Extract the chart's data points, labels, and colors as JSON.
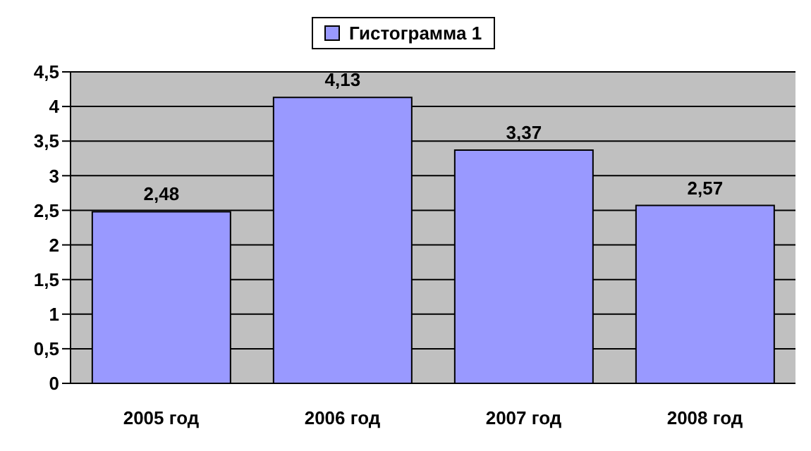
{
  "chart_data": {
    "type": "bar",
    "categories": [
      "2005 год",
      "2006 год",
      "2007 год",
      "2008 год"
    ],
    "series": [
      {
        "name": "Гистограмма 1",
        "color": "#9999ff",
        "values": [
          2.48,
          4.13,
          3.37,
          2.57
        ],
        "value_labels": [
          "2,48",
          "4,13",
          "3,37",
          "2,57"
        ]
      }
    ],
    "ylim": [
      0,
      4.5
    ],
    "yticks": [
      0,
      {
        "value": 0.5,
        "label": "0,5"
      },
      1,
      {
        "value": 1.5,
        "label": "1,5"
      },
      2,
      {
        "value": 2.5,
        "label": "2,5"
      },
      3,
      {
        "value": 3.5,
        "label": "3,5"
      },
      4,
      {
        "value": 4.5,
        "label": "4,5"
      }
    ],
    "grid": "y",
    "legend": "top"
  }
}
